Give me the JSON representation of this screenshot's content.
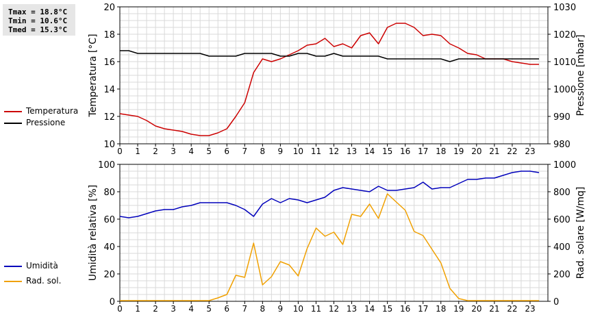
{
  "stats": {
    "tmax": "Tmax = 18.8°C",
    "tmin": "Tmin = 10.6°C",
    "tmed": "Tmed = 15.3°C"
  },
  "legend_top": [
    {
      "name": "Temperatura",
      "color": "#cc0000"
    },
    {
      "name": "Pressione",
      "color": "#000000"
    }
  ],
  "legend_bottom": [
    {
      "name": "Umidità",
      "color": "#0000bb"
    },
    {
      "name": "Rad. sol.",
      "color": "#f0a000"
    }
  ],
  "chart_data": [
    {
      "type": "line",
      "xlim": [
        0,
        24
      ],
      "xticks": [
        0,
        1,
        2,
        3,
        4,
        5,
        6,
        7,
        8,
        9,
        10,
        11,
        12,
        13,
        14,
        15,
        16,
        17,
        18,
        19,
        20,
        21,
        22,
        23
      ],
      "ylabel": "Temperatura [°C]",
      "ylim": [
        10,
        20
      ],
      "yticks": [
        10,
        12,
        14,
        16,
        18,
        20
      ],
      "y2label": "Pressione [mbar]",
      "y2lim": [
        980,
        1030
      ],
      "y2ticks": [
        980,
        990,
        1000,
        1010,
        1020,
        1030
      ],
      "grid": true,
      "legend": "left",
      "series": [
        {
          "name": "Temperatura",
          "axis": "left",
          "color": "#cc0000",
          "x": [
            0,
            0.5,
            1,
            1.5,
            2,
            2.5,
            3,
            3.5,
            4,
            4.5,
            5,
            5.5,
            6,
            6.5,
            7,
            7.5,
            8,
            8.5,
            9,
            9.5,
            10,
            10.5,
            11,
            11.5,
            12,
            12.5,
            13,
            13.5,
            14,
            14.5,
            15,
            15.5,
            16,
            16.5,
            17,
            17.5,
            18,
            18.5,
            19,
            19.5,
            20,
            20.5,
            21,
            21.5,
            22,
            22.5,
            23,
            23.5
          ],
          "y": [
            12.2,
            12.1,
            12.0,
            11.7,
            11.3,
            11.1,
            11.0,
            10.9,
            10.7,
            10.6,
            10.6,
            10.8,
            11.1,
            12.0,
            13.0,
            15.2,
            16.2,
            16.0,
            16.2,
            16.5,
            16.8,
            17.2,
            17.3,
            17.7,
            17.1,
            17.3,
            17.0,
            17.9,
            18.1,
            17.3,
            18.5,
            18.8,
            18.8,
            18.5,
            17.9,
            18.0,
            17.9,
            17.3,
            17.0,
            16.6,
            16.5,
            16.2,
            16.2,
            16.2,
            16.0,
            15.9,
            15.8,
            15.8
          ]
        },
        {
          "name": "Pressione",
          "axis": "right",
          "color": "#000000",
          "x": [
            0,
            0.5,
            1,
            1.5,
            2,
            2.5,
            3,
            3.5,
            4,
            4.5,
            5,
            5.5,
            6,
            6.5,
            7,
            7.5,
            8,
            8.5,
            9,
            9.5,
            10,
            10.5,
            11,
            11.5,
            12,
            12.5,
            13,
            13.5,
            14,
            14.5,
            15,
            15.5,
            16,
            16.5,
            17,
            17.5,
            18,
            18.5,
            19,
            19.5,
            20,
            20.5,
            21,
            21.5,
            22,
            22.5,
            23,
            23.5
          ],
          "y": [
            1014,
            1014,
            1013,
            1013,
            1013,
            1013,
            1013,
            1013,
            1013,
            1013,
            1012,
            1012,
            1012,
            1012,
            1013,
            1013,
            1013,
            1013,
            1012,
            1012,
            1013,
            1013,
            1012,
            1012,
            1013,
            1012,
            1012,
            1012,
            1012,
            1012,
            1011,
            1011,
            1011,
            1011,
            1011,
            1011,
            1011,
            1010,
            1011,
            1011,
            1011,
            1011,
            1011,
            1011,
            1011,
            1011,
            1011,
            1011
          ]
        }
      ]
    },
    {
      "type": "line",
      "xlim": [
        0,
        24
      ],
      "xticks": [
        0,
        1,
        2,
        3,
        4,
        5,
        6,
        7,
        8,
        9,
        10,
        11,
        12,
        13,
        14,
        15,
        16,
        17,
        18,
        19,
        20,
        21,
        22,
        23
      ],
      "ylabel": "Umidità relativa [%]",
      "ylim": [
        0,
        100
      ],
      "yticks": [
        0,
        20,
        40,
        60,
        80,
        100
      ],
      "y2label": "Rad. solare [W/mq]",
      "y2lim": [
        0,
        1000
      ],
      "y2ticks": [
        0,
        200,
        400,
        600,
        800,
        1000
      ],
      "grid": true,
      "legend": "left",
      "series": [
        {
          "name": "Umidità",
          "axis": "left",
          "color": "#0000bb",
          "x": [
            0,
            0.5,
            1,
            1.5,
            2,
            2.5,
            3,
            3.5,
            4,
            4.5,
            5,
            5.5,
            6,
            6.5,
            7,
            7.5,
            8,
            8.5,
            9,
            9.5,
            10,
            10.5,
            11,
            11.5,
            12,
            12.5,
            13,
            13.5,
            14,
            14.5,
            15,
            15.5,
            16,
            16.5,
            17,
            17.5,
            18,
            18.5,
            19,
            19.5,
            20,
            20.5,
            21,
            21.5,
            22,
            22.5,
            23,
            23.5
          ],
          "y": [
            62,
            61,
            62,
            64,
            66,
            67,
            67,
            69,
            70,
            72,
            72,
            72,
            72,
            70,
            67,
            62,
            71,
            75,
            72,
            75,
            74,
            72,
            74,
            76,
            81,
            83,
            82,
            81,
            80,
            84,
            81,
            81,
            82,
            83,
            87,
            82,
            83,
            83,
            86,
            89,
            89,
            90,
            90,
            92,
            94,
            95,
            95,
            94
          ]
        },
        {
          "name": "Rad. sol.",
          "axis": "right",
          "color": "#f0a000",
          "x": [
            0,
            0.5,
            1,
            1.5,
            2,
            2.5,
            3,
            3.5,
            4,
            4.5,
            5,
            5.5,
            6,
            6.5,
            7,
            7.5,
            8,
            8.5,
            9,
            9.5,
            10,
            10.5,
            11,
            11.5,
            12,
            12.5,
            13,
            13.5,
            14,
            14.5,
            15,
            15.5,
            16,
            16.5,
            17,
            17.5,
            18,
            18.5,
            19,
            19.5,
            20,
            20.5,
            21,
            21.5,
            22,
            22.5,
            23,
            23.5
          ],
          "y": [
            5,
            5,
            5,
            5,
            5,
            5,
            5,
            5,
            5,
            5,
            5,
            25,
            50,
            190,
            175,
            425,
            120,
            180,
            290,
            265,
            185,
            385,
            535,
            475,
            505,
            415,
            635,
            620,
            710,
            605,
            785,
            725,
            665,
            510,
            480,
            380,
            280,
            95,
            20,
            5,
            5,
            5,
            5,
            5,
            5,
            5,
            5,
            5
          ]
        }
      ]
    }
  ]
}
